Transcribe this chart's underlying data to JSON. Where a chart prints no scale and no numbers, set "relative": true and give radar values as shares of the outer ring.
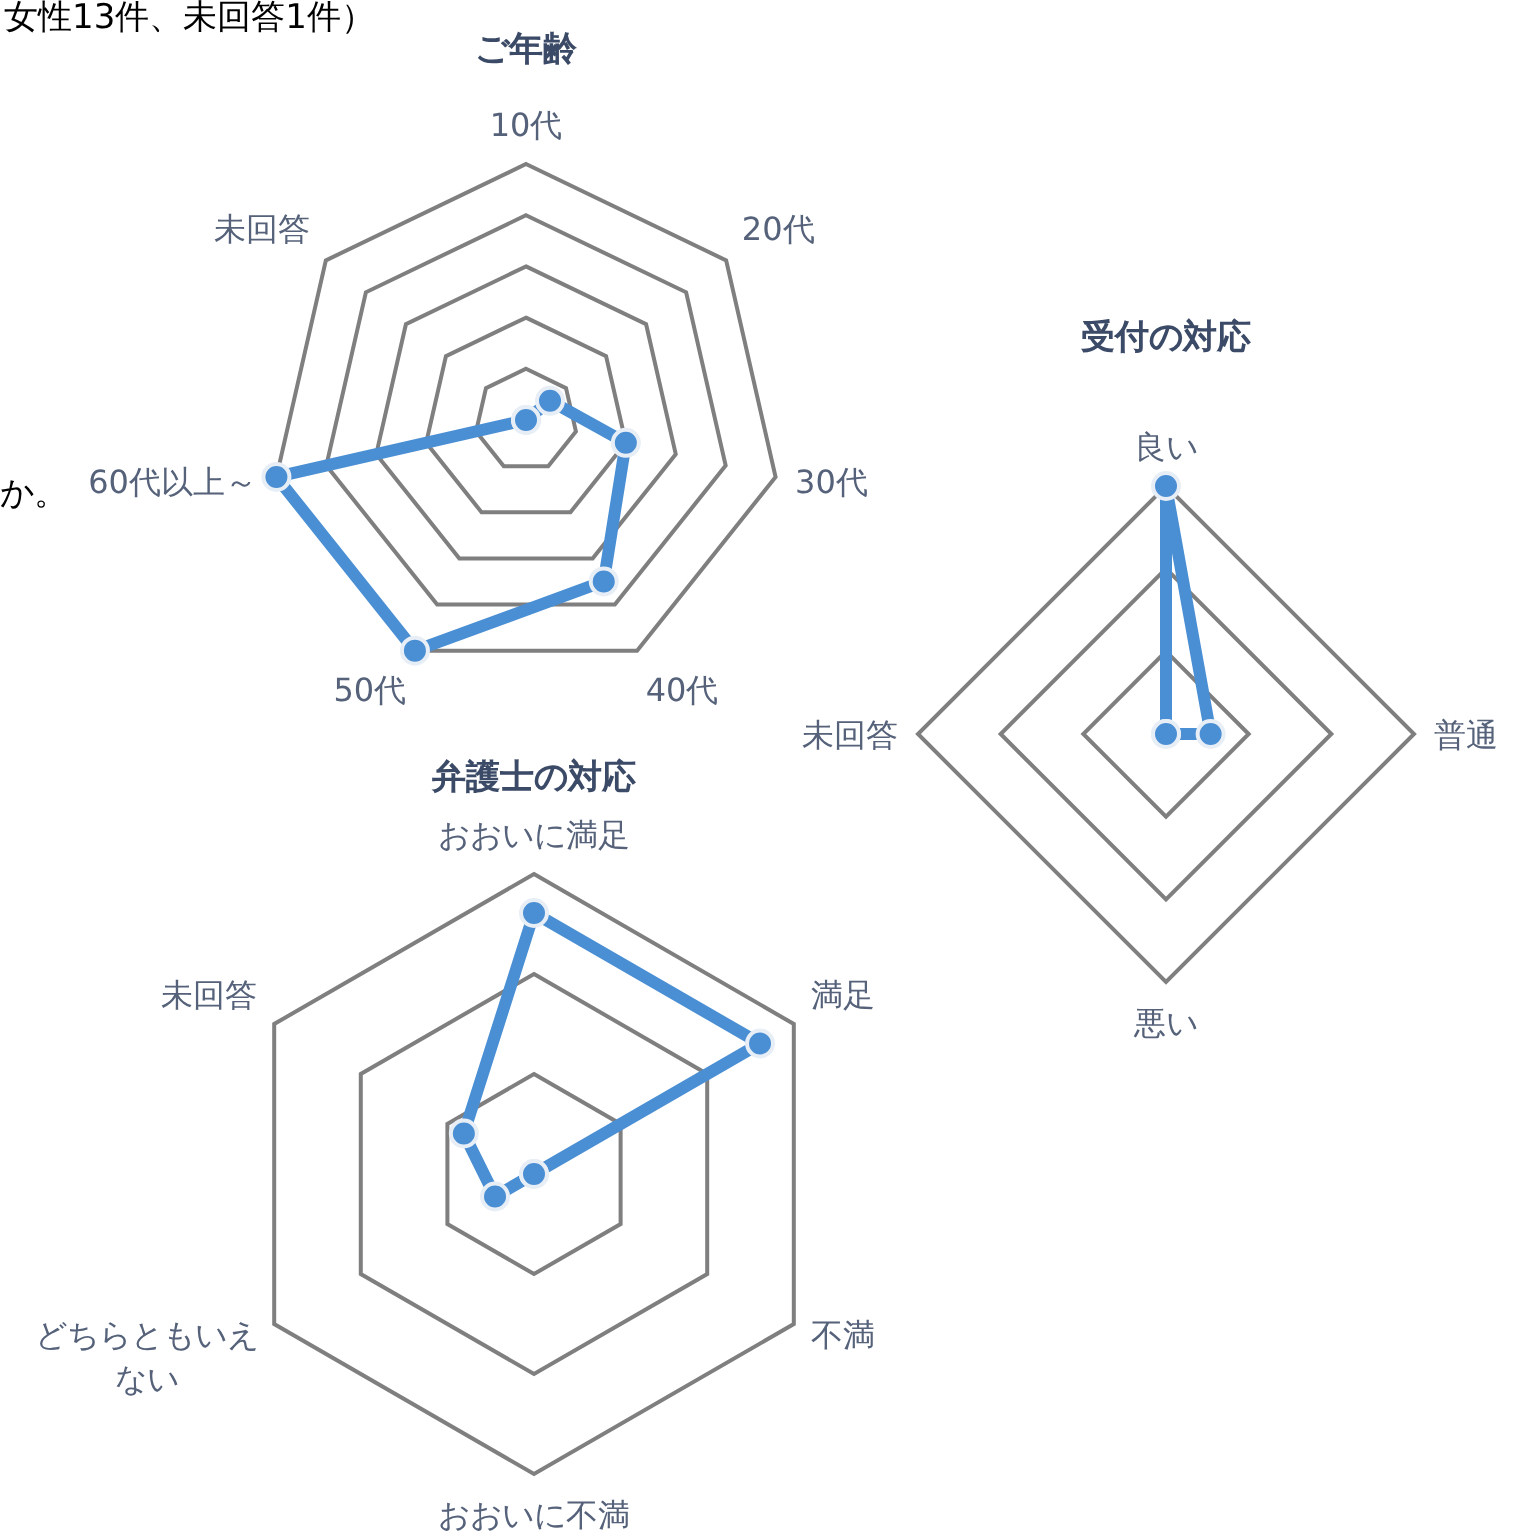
{
  "chart_data": [
    {
      "type": "radar",
      "title": "ご年齢",
      "categories": [
        "10代",
        "20代",
        "30代",
        "40代",
        "50代",
        "60代以上～",
        "未回答"
      ],
      "relative": true,
      "grid": true,
      "marker": "circle",
      "line_style": "solid",
      "series": [
        {
          "color": "#4a8fd4",
          "values": [
            0,
            0.12,
            0.4,
            0.7,
            1,
            1,
            0
          ]
        }
      ],
      "annotations": [
        "女性13件、未回答1件）",
        "か。"
      ]
    },
    {
      "type": "radar",
      "title": "受付の対応",
      "categories": [
        "良い",
        "普通",
        "悪い",
        "未回答"
      ],
      "relative": true,
      "grid": true,
      "marker": "circle",
      "line_style": "solid",
      "series": [
        {
          "color": "#4a8fd4",
          "values": [
            1,
            0.18,
            0,
            0
          ]
        }
      ]
    },
    {
      "type": "radar",
      "title": "弁護士の対応",
      "categories": [
        "おおいに満足",
        "満足",
        "不満",
        "おおいに不満",
        "どちらともいえない",
        "未回答"
      ],
      "relative": true,
      "grid": true,
      "marker": "circle",
      "line_style": "solid",
      "series": [
        {
          "color": "#4a8fd4",
          "values": [
            0.87,
            0.87,
            0,
            0,
            0.15,
            0.27
          ]
        }
      ]
    }
  ]
}
